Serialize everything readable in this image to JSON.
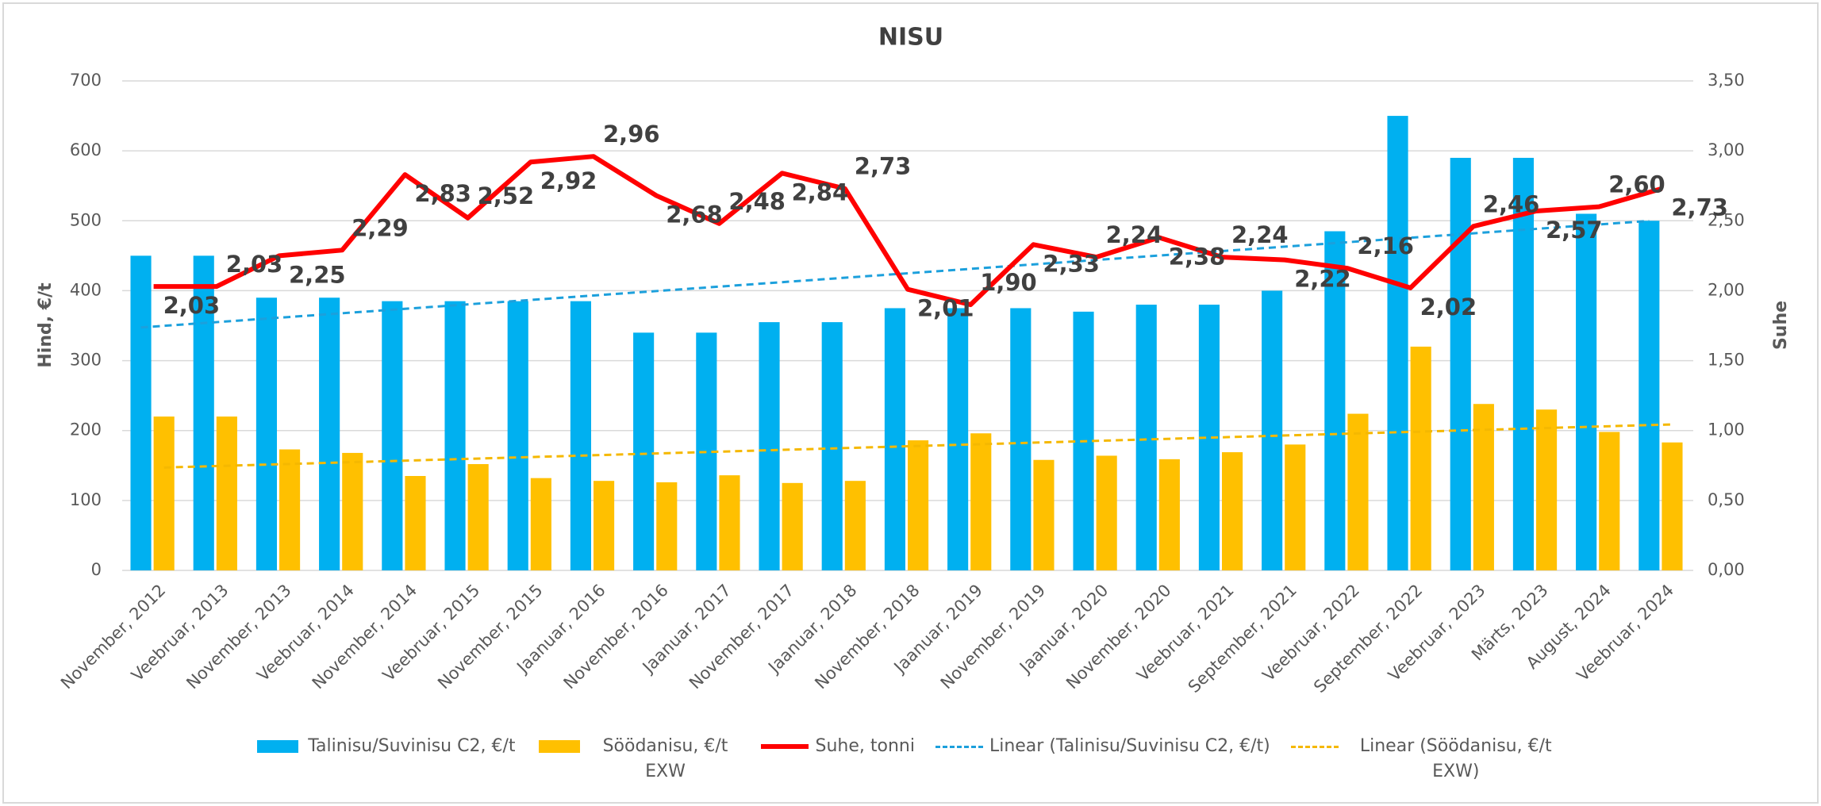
{
  "chart_data": {
    "type": "bar-line",
    "title": "NISU",
    "categories": [
      "November, 2012",
      "Veebruar, 2013",
      "November, 2013",
      "Veebruar, 2014",
      "November, 2014",
      "Veebruar, 2015",
      "November, 2015",
      "Jaanuar, 2016",
      "November, 2016",
      "Jaanuar, 2017",
      "November, 2017",
      "Jaanuar, 2018",
      "November, 2018",
      "Jaanuar, 2019",
      "November, 2019",
      "Jaanuar, 2020",
      "November, 2020",
      "Veebruar, 2021",
      "September, 2021",
      "Veebruar, 2022",
      "September, 2022",
      "Veebruar, 2023",
      "Märts, 2023",
      "August, 2024",
      "Veebruar, 2024"
    ],
    "ylabel": "Hind, €/t",
    "y2label": "Suhe",
    "ylim": [
      0,
      700
    ],
    "yticks": [
      0,
      100,
      200,
      300,
      400,
      500,
      600,
      700
    ],
    "y2lim": [
      0,
      3.5
    ],
    "y2ticks": [
      {
        "value": 0,
        "label": "0,00"
      },
      {
        "value": 0.5,
        "label": "0,50"
      },
      {
        "value": 1,
        "label": "1,00"
      },
      {
        "value": 1.5,
        "label": "1,50"
      },
      {
        "value": 2,
        "label": "2,00"
      },
      {
        "value": 2.5,
        "label": "2,50"
      },
      {
        "value": 3,
        "label": "3,00"
      },
      {
        "value": 3.5,
        "label": "3,50"
      }
    ],
    "grid": true,
    "series": [
      {
        "name": "Talinisu/Suvinisu C2, €/t",
        "type": "bar",
        "color": "#00b0f0",
        "values": [
          450,
          450,
          390,
          390,
          385,
          385,
          385,
          385,
          340,
          340,
          355,
          355,
          375,
          375,
          375,
          370,
          380,
          380,
          400,
          485,
          650,
          590,
          590,
          510,
          500
        ],
        "trendline": {
          "name": "Linear (Talinisu/Suvinisu C2, €/t)",
          "color": "#1ca0dc"
        }
      },
      {
        "name": "Söödanisu, €/t EXW",
        "type": "bar",
        "color": "#ffc000",
        "values": [
          220,
          220,
          173,
          168,
          135,
          152,
          132,
          128,
          126,
          136,
          125,
          128,
          186,
          196,
          158,
          164,
          159,
          169,
          180,
          224,
          320,
          238,
          230,
          198,
          183
        ],
        "trendline": {
          "name": "Linear (Söödanisu, €/t EXW)",
          "color": "#f5b800"
        }
      },
      {
        "name": "Suhe, tonni",
        "type": "line",
        "axis": "y2",
        "color": "#ff0000",
        "values": [
          2.03,
          2.03,
          2.25,
          2.29,
          2.83,
          2.52,
          2.92,
          2.96,
          2.68,
          2.48,
          2.84,
          2.73,
          2.01,
          1.9,
          2.33,
          2.24,
          2.38,
          2.24,
          2.22,
          2.16,
          2.02,
          2.46,
          2.57,
          2.6,
          2.73
        ],
        "value_labels": [
          "2,03",
          "2,03",
          "2,25",
          "2,29",
          "2,83",
          "2,52",
          "2,92",
          "2,96",
          "2,68",
          "2,48",
          "2,84",
          "2,73",
          "2,01",
          "1,90",
          "2,33",
          "2,24",
          "2,38",
          "2,24",
          "2,22",
          "2,16",
          "2,02",
          "2,46",
          "2,57",
          "2,60",
          "2,73"
        ]
      }
    ]
  }
}
